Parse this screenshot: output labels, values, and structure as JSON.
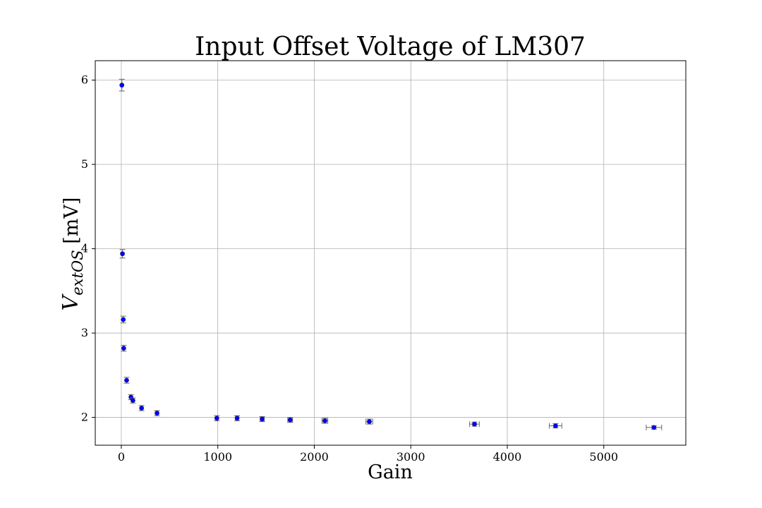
{
  "chart_data": {
    "type": "scatter",
    "title": "Input Offset Voltage of LM307",
    "xlabel": "Gain",
    "ylabel": {
      "main": "V",
      "subscript": "extOS",
      "unit": " [mV]"
    },
    "xlim": [
      -270,
      5850
    ],
    "ylim": [
      1.67,
      6.23
    ],
    "xticks": [
      0,
      1000,
      2000,
      3000,
      4000,
      5000
    ],
    "yticks": [
      2,
      3,
      4,
      5,
      6
    ],
    "grid": true,
    "marker_color": "#0000ff",
    "marker_edge_color": "#1a1a8c",
    "errorbar_color": "#666666",
    "points": [
      {
        "x": 6,
        "y": 5.94,
        "xerr": 0,
        "yerr": 0.07
      },
      {
        "x": 12,
        "y": 3.94,
        "xerr": 0,
        "yerr": 0.05
      },
      {
        "x": 20,
        "y": 3.16,
        "xerr": 0,
        "yerr": 0.04
      },
      {
        "x": 25,
        "y": 2.82,
        "xerr": 0,
        "yerr": 0.035
      },
      {
        "x": 55,
        "y": 2.44,
        "xerr": 0,
        "yerr": 0.035
      },
      {
        "x": 100,
        "y": 2.24,
        "xerr": 0,
        "yerr": 0.03
      },
      {
        "x": 120,
        "y": 2.2,
        "xerr": 0,
        "yerr": 0.03
      },
      {
        "x": 210,
        "y": 2.11,
        "xerr": 0,
        "yerr": 0.03
      },
      {
        "x": 370,
        "y": 2.05,
        "xerr": 0,
        "yerr": 0.03
      },
      {
        "x": 990,
        "y": 1.99,
        "xerr": 10,
        "yerr": 0.03
      },
      {
        "x": 1200,
        "y": 1.99,
        "xerr": 15,
        "yerr": 0.03
      },
      {
        "x": 1460,
        "y": 1.98,
        "xerr": 20,
        "yerr": 0.03
      },
      {
        "x": 1750,
        "y": 1.97,
        "xerr": 25,
        "yerr": 0.03
      },
      {
        "x": 2110,
        "y": 1.96,
        "xerr": 30,
        "yerr": 0.03
      },
      {
        "x": 2570,
        "y": 1.95,
        "xerr": 35,
        "yerr": 0.03
      },
      {
        "x": 3660,
        "y": 1.92,
        "xerr": 50,
        "yerr": 0.025
      },
      {
        "x": 4500,
        "y": 1.9,
        "xerr": 65,
        "yerr": 0.025
      },
      {
        "x": 5520,
        "y": 1.88,
        "xerr": 80,
        "yerr": 0.02
      }
    ]
  }
}
